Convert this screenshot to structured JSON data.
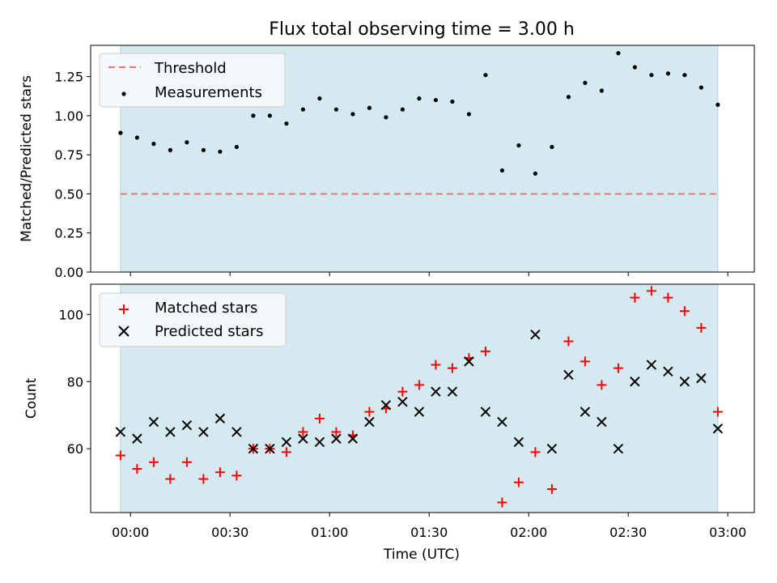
{
  "title": "Flux total observing time = 3.00 h",
  "xlabel": "Time (UTC)",
  "x_ticks": [
    "00:00",
    "00:30",
    "01:00",
    "01:30",
    "02:00",
    "02:30",
    "03:00"
  ],
  "colors": {
    "background_band": "#d4eaf0",
    "threshold": "#f47070",
    "measurements": "#000000",
    "matched": "#ff0000",
    "predicted": "#000000",
    "legend_bg": "#f4f8fb"
  },
  "chart_data": [
    {
      "type": "scatter",
      "ylabel": "Matched/Predicted stars",
      "ylim": [
        0,
        1.45
      ],
      "y_ticks": [
        "0.00",
        "0.25",
        "0.50",
        "0.75",
        "1.00",
        "1.25"
      ],
      "shaded_region_minutes": [
        -3,
        177
      ],
      "threshold": 0.5,
      "legend": {
        "placement": "upper-left",
        "entries": [
          "Threshold",
          "Measurements"
        ]
      },
      "series": [
        {
          "name": "Measurements",
          "marker": "dot",
          "x_minutes": [
            -3,
            2,
            7,
            12,
            17,
            22,
            27,
            32,
            37,
            42,
            47,
            52,
            57,
            62,
            67,
            72,
            77,
            82,
            87,
            92,
            97,
            102,
            107,
            112,
            117,
            122,
            127,
            132,
            137,
            142,
            147,
            152,
            157,
            162,
            167,
            172,
            177
          ],
          "values": [
            0.89,
            0.86,
            0.82,
            0.78,
            0.83,
            0.78,
            0.77,
            0.8,
            1.0,
            1.0,
            0.95,
            1.04,
            1.11,
            1.04,
            1.01,
            1.05,
            0.99,
            1.04,
            1.11,
            1.1,
            1.09,
            1.01,
            1.26,
            0.65,
            0.81,
            0.63,
            0.8,
            1.12,
            1.21,
            1.16,
            1.4,
            1.31,
            1.26,
            1.27,
            1.26,
            1.18,
            1.07
          ]
        }
      ]
    },
    {
      "type": "scatter",
      "ylabel": "Count",
      "ylim": [
        41,
        109
      ],
      "y_ticks": [
        "60",
        "80",
        "100"
      ],
      "shaded_region_minutes": [
        -3,
        177
      ],
      "legend": {
        "placement": "upper-left",
        "entries": [
          "Matched stars",
          "Predicted stars"
        ]
      },
      "series": [
        {
          "name": "Matched stars",
          "marker": "plus",
          "x_minutes": [
            -3,
            2,
            7,
            12,
            17,
            22,
            27,
            32,
            37,
            42,
            47,
            52,
            57,
            62,
            67,
            72,
            77,
            82,
            87,
            92,
            97,
            102,
            107,
            112,
            117,
            122,
            127,
            132,
            137,
            142,
            147,
            152,
            157,
            162,
            167,
            172,
            177
          ],
          "values": [
            58,
            54,
            56,
            51,
            56,
            51,
            53,
            52,
            60,
            60,
            59,
            65,
            69,
            65,
            64,
            71,
            72,
            77,
            79,
            85,
            84,
            87,
            89,
            44,
            50,
            59,
            48,
            92,
            86,
            79,
            84,
            105,
            107,
            105,
            101,
            96,
            71
          ]
        },
        {
          "name": "Predicted stars",
          "marker": "x",
          "x_minutes": [
            -3,
            2,
            7,
            12,
            17,
            22,
            27,
            32,
            37,
            42,
            47,
            52,
            57,
            62,
            67,
            72,
            77,
            82,
            87,
            92,
            97,
            102,
            107,
            112,
            117,
            122,
            127,
            132,
            137,
            142,
            147,
            152,
            157,
            162,
            167,
            172,
            177
          ],
          "values": [
            65,
            63,
            68,
            65,
            67,
            65,
            69,
            65,
            60,
            60,
            62,
            63,
            62,
            63,
            63,
            68,
            73,
            74,
            71,
            77,
            77,
            86,
            71,
            68,
            62,
            94,
            60,
            82,
            71,
            68,
            60,
            80,
            85,
            83,
            80,
            81,
            66
          ]
        }
      ]
    }
  ]
}
